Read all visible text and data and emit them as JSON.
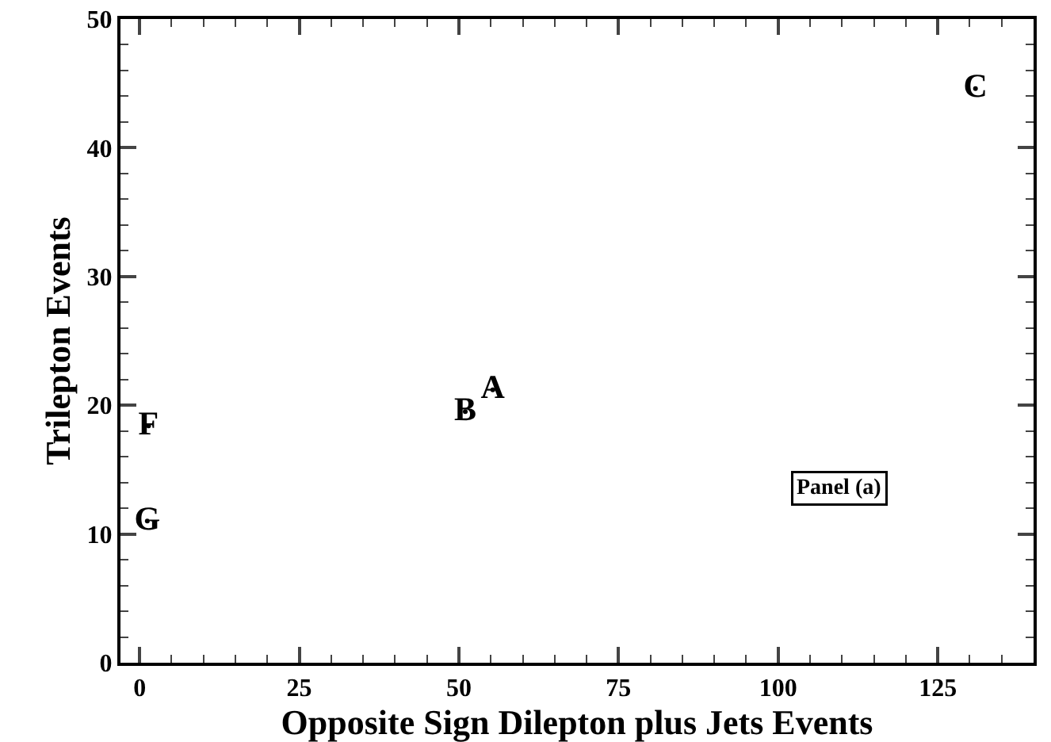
{
  "chart_data": {
    "type": "scatter",
    "xlabel": "Opposite Sign Dilepton plus Jets Events",
    "ylabel": "Trilepton Events",
    "x": [
      55.3,
      51.0,
      130.9,
      1.4,
      1.2
    ],
    "values": [
      21.2,
      19.5,
      44.6,
      18.4,
      11.0
    ],
    "value_labels": [
      "A",
      "B",
      "C",
      "F",
      "G"
    ],
    "marker": "none",
    "xlim": [
      -3,
      140
    ],
    "xticks": [
      0,
      25,
      50,
      75,
      100,
      125
    ],
    "ylim": [
      0,
      50
    ],
    "yticks": [
      0,
      10,
      20,
      30,
      40,
      50
    ],
    "annotations": [
      "Panel (a)"
    ]
  }
}
